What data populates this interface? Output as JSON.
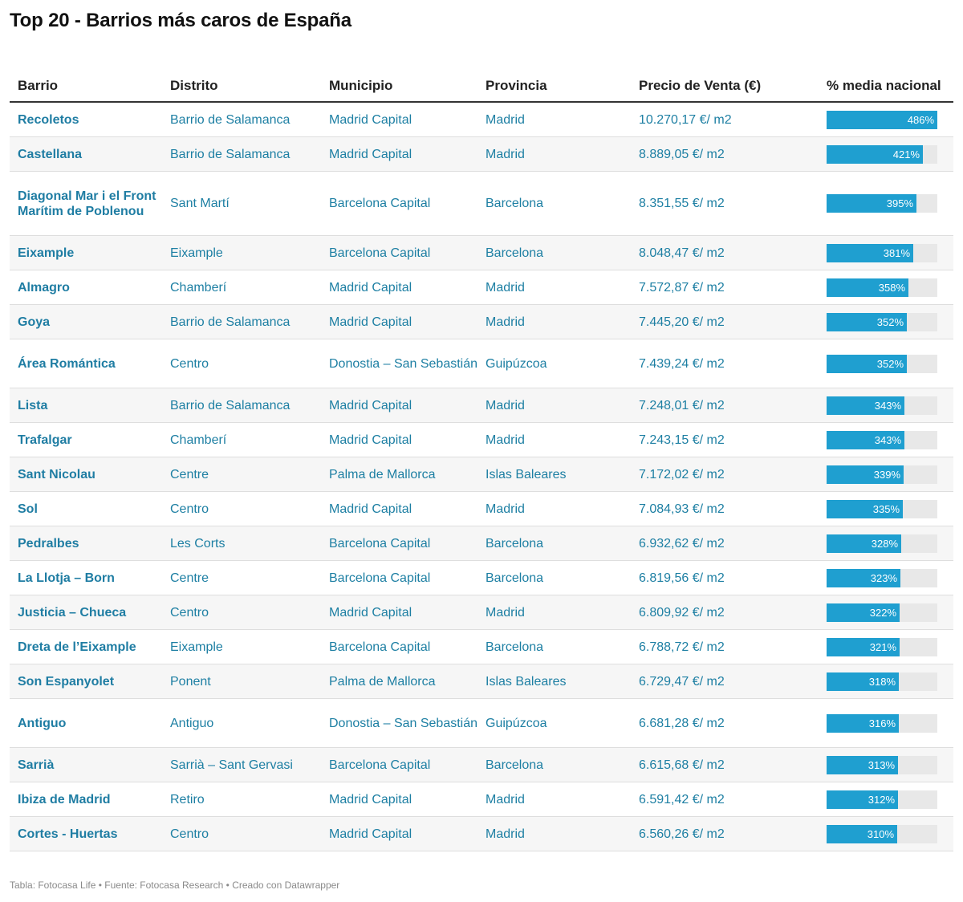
{
  "title": "Top 20 - Barrios más caros de España",
  "footer": "Tabla: Fotocasa Life • Fuente: Fotocasa Research • Creado con Datawrapper",
  "colors": {
    "bar": "#1f9fd0",
    "track": "#e8e8e8",
    "link": "#1f7da3"
  },
  "chart_data": {
    "type": "table",
    "title": "Top 20 - Barrios más caros de España",
    "columns": [
      "Barrio",
      "Distrito",
      "Municipio",
      "Provincia",
      "Precio de Venta (€)",
      "% media nacional"
    ],
    "bar_max": 486,
    "rows": [
      {
        "barrio": "Recoletos",
        "distrito": "Barrio de Salamanca",
        "municipio": "Madrid Capital",
        "provincia": "Madrid",
        "precio": "10.270,17 €/ m2",
        "pct": 486,
        "pct_label": "486%"
      },
      {
        "barrio": "Castellana",
        "distrito": "Barrio de Salamanca",
        "municipio": "Madrid Capital",
        "provincia": "Madrid",
        "precio": "8.889,05 €/ m2",
        "pct": 421,
        "pct_label": "421%"
      },
      {
        "barrio": "Diagonal Mar i el Front Marítim de Poblenou",
        "distrito": "Sant Martí",
        "municipio": "Barcelona Capital",
        "provincia": "Barcelona",
        "precio": "8.351,55 €/ m2",
        "pct": 395,
        "pct_label": "395%"
      },
      {
        "barrio": "Eixample",
        "distrito": "Eixample",
        "municipio": "Barcelona Capital",
        "provincia": "Barcelona",
        "precio": "8.048,47 €/ m2",
        "pct": 381,
        "pct_label": "381%"
      },
      {
        "barrio": "Almagro",
        "distrito": "Chamberí",
        "municipio": "Madrid Capital",
        "provincia": "Madrid",
        "precio": "7.572,87 €/ m2",
        "pct": 358,
        "pct_label": "358%"
      },
      {
        "barrio": "Goya",
        "distrito": "Barrio de Salamanca",
        "municipio": "Madrid Capital",
        "provincia": "Madrid",
        "precio": "7.445,20 €/ m2",
        "pct": 352,
        "pct_label": "352%"
      },
      {
        "barrio": "Área Romántica",
        "distrito": "Centro",
        "municipio": "Donostia – San Sebastián",
        "provincia": "Guipúzcoa",
        "precio": "7.439,24 €/ m2",
        "pct": 352,
        "pct_label": "352%"
      },
      {
        "barrio": "Lista",
        "distrito": "Barrio de Salamanca",
        "municipio": "Madrid Capital",
        "provincia": "Madrid",
        "precio": "7.248,01 €/ m2",
        "pct": 343,
        "pct_label": "343%"
      },
      {
        "barrio": "Trafalgar",
        "distrito": "Chamberí",
        "municipio": "Madrid Capital",
        "provincia": "Madrid",
        "precio": "7.243,15 €/ m2",
        "pct": 343,
        "pct_label": "343%"
      },
      {
        "barrio": "Sant Nicolau",
        "distrito": "Centre",
        "municipio": "Palma de Mallorca",
        "provincia": "Islas Baleares",
        "precio": "7.172,02 €/ m2",
        "pct": 339,
        "pct_label": "339%"
      },
      {
        "barrio": "Sol",
        "distrito": "Centro",
        "municipio": "Madrid Capital",
        "provincia": "Madrid",
        "precio": "7.084,93 €/ m2",
        "pct": 335,
        "pct_label": "335%"
      },
      {
        "barrio": "Pedralbes",
        "distrito": "Les Corts",
        "municipio": "Barcelona Capital",
        "provincia": "Barcelona",
        "precio": "6.932,62 €/ m2",
        "pct": 328,
        "pct_label": "328%"
      },
      {
        "barrio": "La Llotja – Born",
        "distrito": "Centre",
        "municipio": "Barcelona Capital",
        "provincia": "Barcelona",
        "precio": "6.819,56 €/ m2",
        "pct": 323,
        "pct_label": "323%"
      },
      {
        "barrio": "Justicia – Chueca",
        "distrito": "Centro",
        "municipio": "Madrid Capital",
        "provincia": "Madrid",
        "precio": "6.809,92 €/ m2",
        "pct": 322,
        "pct_label": "322%"
      },
      {
        "barrio": "Dreta de l’Eixample",
        "distrito": "Eixample",
        "municipio": "Barcelona Capital",
        "provincia": "Barcelona",
        "precio": "6.788,72 €/ m2",
        "pct": 321,
        "pct_label": "321%"
      },
      {
        "barrio": "Son Espanyolet",
        "distrito": "Ponent",
        "municipio": "Palma de Mallorca",
        "provincia": "Islas Baleares",
        "precio": "6.729,47 €/ m2",
        "pct": 318,
        "pct_label": "318%"
      },
      {
        "barrio": "Antiguo",
        "distrito": "Antiguo",
        "municipio": "Donostia – San Sebastián",
        "provincia": "Guipúzcoa",
        "precio": "6.681,28 €/ m2",
        "pct": 316,
        "pct_label": "316%"
      },
      {
        "barrio": "Sarrià",
        "distrito": "Sarrià – Sant Gervasi",
        "municipio": "Barcelona Capital",
        "provincia": "Barcelona",
        "precio": "6.615,68 €/ m2",
        "pct": 313,
        "pct_label": "313%"
      },
      {
        "barrio": "Ibiza de Madrid",
        "distrito": "Retiro",
        "municipio": "Madrid Capital",
        "provincia": "Madrid",
        "precio": "6.591,42 €/ m2",
        "pct": 312,
        "pct_label": "312%"
      },
      {
        "barrio": "Cortes - Huertas",
        "distrito": "Centro",
        "municipio": "Madrid Capital",
        "provincia": "Madrid",
        "precio": "6.560,26 €/ m2",
        "pct": 310,
        "pct_label": "310%"
      }
    ]
  }
}
